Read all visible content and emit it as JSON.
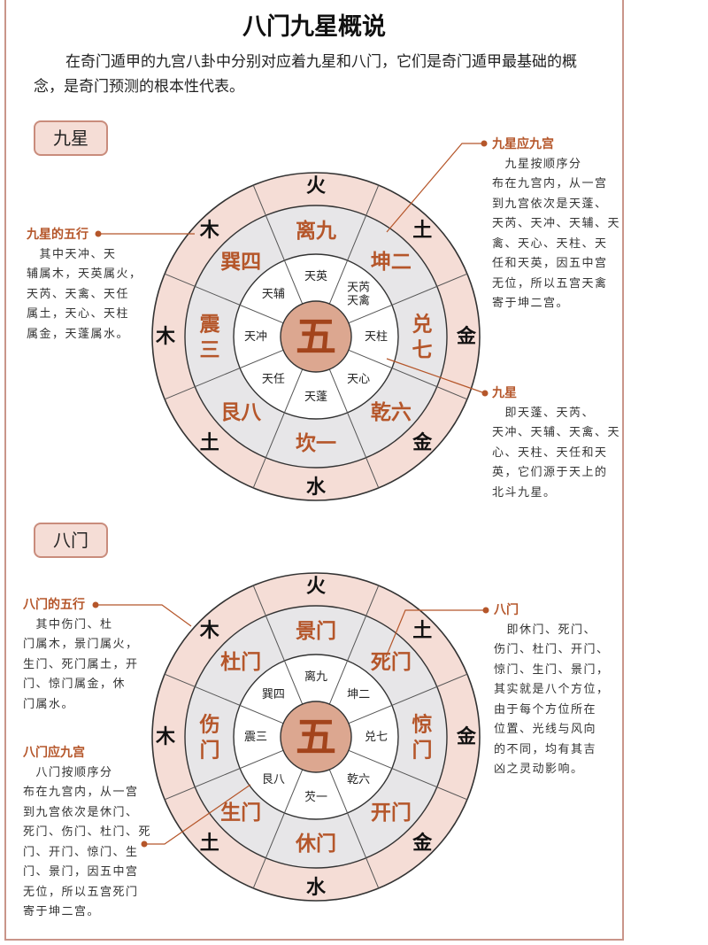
{
  "title": "八门九星概说",
  "intro": "在奇门遁甲的九宫八卦中分别对应着九星和八门，它们是奇门遁甲最基础的概念，是奇门预测的根本性代表。",
  "colors": {
    "outer_ring": "#f5ddd6",
    "middle_ring": "#e7e6e8",
    "inner_ring": "#ffffff",
    "center": "#dca790",
    "accent": "#b5562a",
    "center_text": "#a3441c",
    "line": "#555555"
  },
  "sections": [
    {
      "label": "九星",
      "diagram": {
        "center": "五",
        "outer": [
          "火",
          "土",
          "金",
          "金",
          "水",
          "土",
          "木",
          "木"
        ],
        "middle": [
          "离九",
          "坤二",
          "兑七",
          "乾六",
          "坎一",
          "艮八",
          "震三",
          "巽四"
        ],
        "inner": [
          "天英",
          "天芮\n天禽",
          "天柱",
          "天心",
          "天蓬",
          "天任",
          "天冲",
          "天辅"
        ]
      },
      "notes": [
        {
          "heading": "九星应九宫",
          "lines": [
            "　九星按顺序分",
            "布在九宫内，从一宫",
            "到九宫依次是天蓬、",
            "天芮、天冲、天辅、天",
            "禽、天心、天柱、天",
            "任和天英，因五中宫",
            "无位，所以五宫天禽",
            "寄于坤二宫。"
          ]
        },
        {
          "heading": "九星的五行",
          "lines": [
            "　其中天冲、天",
            "辅属木，天英属火，",
            "天芮、天禽、天任",
            "属土，天心、天柱",
            "属金，天蓬属水。"
          ]
        },
        {
          "heading": "九星",
          "lines": [
            "　即天蓬、天芮、",
            "天冲、天辅、天禽、天",
            "心、天柱、天任和天",
            "英，它们源于天上的",
            "北斗九星。"
          ]
        }
      ]
    },
    {
      "label": "八门",
      "diagram": {
        "center": "五",
        "outer": [
          "火",
          "土",
          "金",
          "金",
          "水",
          "土",
          "木",
          "木"
        ],
        "middle": [
          "景门",
          "死门",
          "惊门",
          "开门",
          "休门",
          "生门",
          "伤门",
          "杜门"
        ],
        "inner": [
          "离九",
          "坤二",
          "兑七",
          "乾六",
          "芡一",
          "艮八",
          "震三",
          "巽四"
        ]
      },
      "notes": [
        {
          "heading": "八门的五行",
          "lines": [
            "　其中伤门、杜",
            "门属木，景门属火，",
            "生门、死门属土，开",
            "门、惊门属金，休",
            "门属水。"
          ]
        },
        {
          "heading": "八门应九宫",
          "lines": [
            "　八门按顺序分",
            "布在九宫内，从一宫",
            "到九宫依次是休门、",
            "死门、伤门、杜门、死",
            "门、开门、惊门、生",
            "门、景门，因五中宫",
            "无位，所以五宫死门",
            "寄于坤二宫。"
          ]
        },
        {
          "heading": "八门",
          "lines": [
            "　即休门、死门、",
            "伤门、杜门、开门、",
            "惊门、生门、景门，",
            "其实就是八个方位，",
            "由于每个方位所在",
            "位置、光线与风向",
            "的不同，均有其吉",
            "凶之灵动影响。"
          ]
        }
      ]
    }
  ]
}
